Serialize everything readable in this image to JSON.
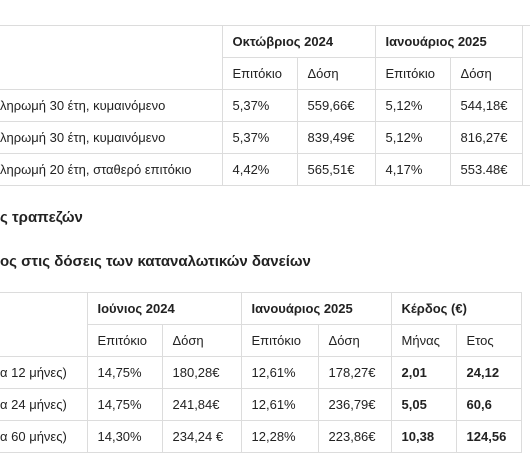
{
  "table1": {
    "groups": [
      "Οκτώβριος 2024",
      "Ιανουάριος 2025"
    ],
    "subheaders": [
      "Επιτόκιο",
      "Δόση",
      "Επιτόκιο",
      "Δόση"
    ],
    "rows": [
      [
        "ληρωμή 30 έτη, κυμαινόμενο",
        "5,37%",
        "559,66€",
        "5,12%",
        "544,18€"
      ],
      [
        "ληρωμή 30 έτη, κυμαινόμενο",
        "5,37%",
        "839,49€",
        "5,12%",
        "816,27€"
      ],
      [
        "ληρωμή 20 έτη, σταθερό επιτόκιο",
        "4,42%",
        "565,51€",
        "4,17%",
        "553.48€"
      ]
    ]
  },
  "heading1": "ς τραπεζών",
  "heading2": "ος στις δόσεις των καταναλωτικών δανείων",
  "table2": {
    "groups": [
      "Ιούνιος 2024",
      "Ιανουάριος 2025",
      "Κέρδος (€)"
    ],
    "subheaders": [
      "Επιτόκιο",
      "Δόση",
      "Επιτόκιο",
      "Δόση",
      "Μήνας",
      "Ετος"
    ],
    "rows": [
      [
        "α 12 μήνες)",
        "14,75%",
        "180,28€",
        "12,61%",
        "178,27€",
        "2,01",
        "24,12"
      ],
      [
        "α 24 μήνες)",
        "14,75%",
        "241,84€",
        "12,61%",
        "236,79€",
        "5,05",
        "60,6"
      ],
      [
        "α 60 μήνες)",
        "14,30%",
        "234,24 €",
        "12,28%",
        "223,86€",
        "10,38",
        "124,56"
      ]
    ]
  }
}
